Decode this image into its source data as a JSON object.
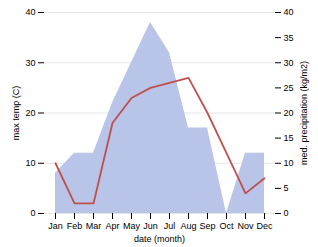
{
  "chart_data": {
    "type": "line",
    "xlabel": "date (month)",
    "ylabel": "max temp (C)",
    "y2label": "med. precipitation (kg/m2)",
    "categories": [
      "Jan",
      "Feb",
      "Mar",
      "Apr",
      "May",
      "Jun",
      "Jul",
      "Aug",
      "Sep",
      "Oct",
      "Nov",
      "Dec"
    ],
    "series": [
      {
        "type": "area",
        "color": "#b8c4e8",
        "axis": "y2",
        "values": [
          8,
          12,
          12,
          22,
          30,
          38,
          32,
          17,
          17,
          0,
          12,
          12
        ]
      },
      {
        "type": "line",
        "color": "#c0504d",
        "values": [
          10,
          2,
          2,
          18,
          23,
          25,
          26,
          27,
          20,
          12,
          4,
          7
        ]
      }
    ],
    "ylim": [
      0,
      40
    ],
    "yticks": [
      0,
      10,
      20,
      30,
      40
    ],
    "y2lim": [
      0,
      40
    ],
    "y2ticks": [
      0,
      5,
      10,
      15,
      20,
      25,
      30,
      35,
      40
    ],
    "grid": true
  }
}
